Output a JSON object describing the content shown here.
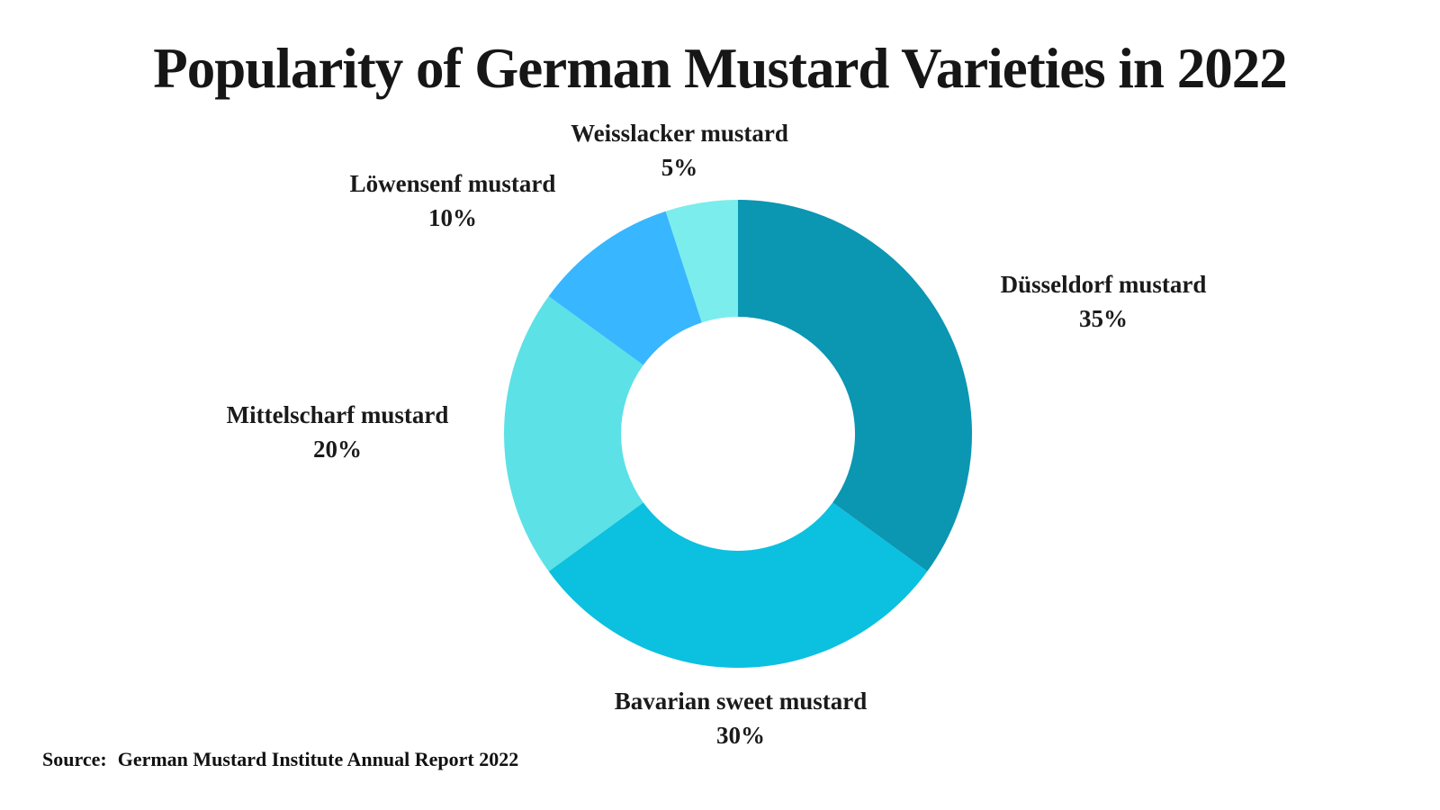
{
  "title": "Popularity of German Mustard Varieties in 2022",
  "source": {
    "label": "Source:",
    "text": "German Mustard Institute Annual Report 2022"
  },
  "chart_data": {
    "type": "pie",
    "subtype": "donut",
    "title": "Popularity of German Mustard Varieties in 2022",
    "categories": [
      "Düsseldorf mustard",
      "Bavarian sweet mustard",
      "Mittelscharf mustard",
      "Löwensenf mustard",
      "Weisslacker mustard"
    ],
    "values": [
      35,
      30,
      20,
      10,
      5
    ],
    "value_labels": [
      "35%",
      "30%",
      "20%",
      "10%",
      "5%"
    ],
    "unit": "%",
    "colors": [
      "#0B96B2",
      "#0CC0DF",
      "#5CE1E6",
      "#38B6FF",
      "#7BEDED"
    ],
    "start_angle_deg": 0,
    "direction": "clockwise",
    "inner_radius_ratio": 0.5,
    "legend_position": "labels-around-chart",
    "background_color": "#FFFFFF",
    "text_color": "#1A1A1A"
  }
}
